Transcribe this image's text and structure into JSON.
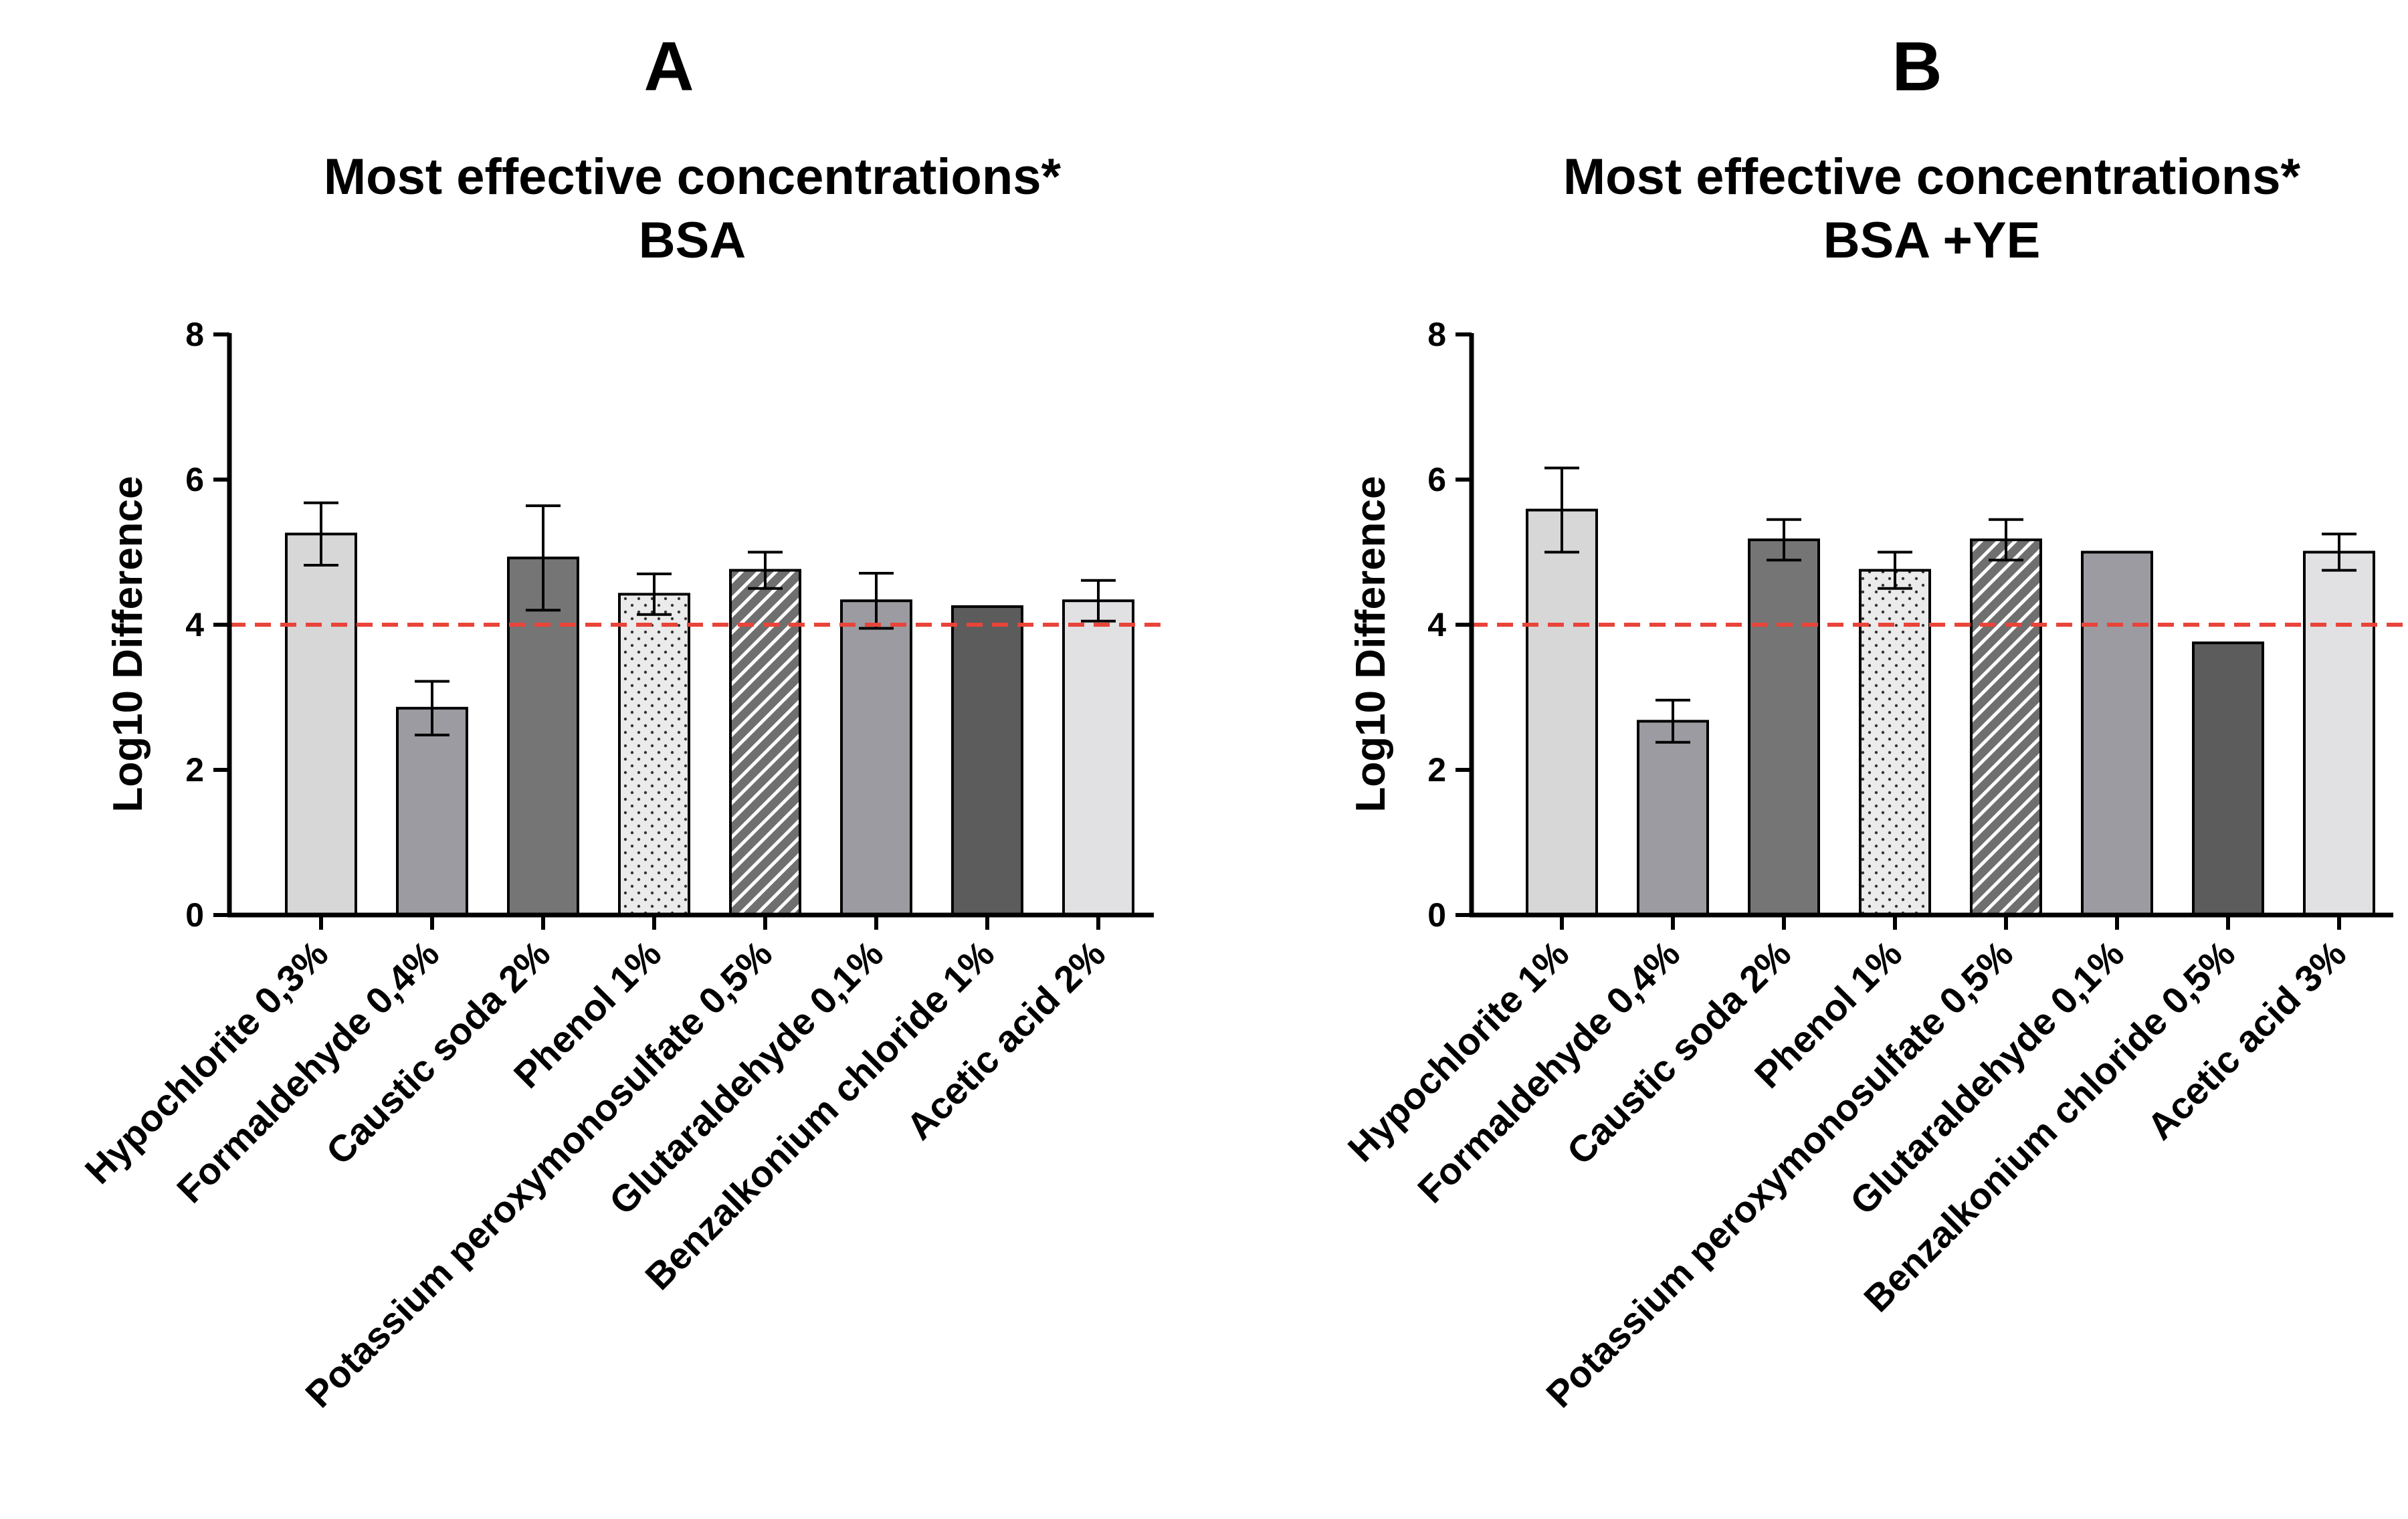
{
  "chart_data": [
    {
      "type": "bar",
      "panel": "A",
      "title": "Most effective concentrations*",
      "subtitle": "BSA",
      "xlabel": "",
      "ylabel": "Log10 Difference",
      "ylim": [
        0,
        8
      ],
      "yticks": [
        "0",
        "2",
        "4",
        "6",
        "8"
      ],
      "threshold": 4,
      "categories": [
        "Hypochlorite 0,3%",
        "Formaldehyde 0,4%",
        "Caustic soda 2%",
        "Phenol 1%",
        "Potassium peroxymonosulfate 0,5%",
        "Glutaraldehyde 0,1%",
        "Benzalkonium chloride 1%",
        "Acetic acid 2%"
      ],
      "values": [
        5.25,
        2.85,
        4.92,
        4.42,
        4.75,
        4.33,
        4.25,
        4.33
      ],
      "errors": [
        0.43,
        0.37,
        0.72,
        0.28,
        0.25,
        0.38,
        0,
        0.28
      ],
      "fills": [
        "#d7d7d7",
        "#9b9ba1",
        "#757575",
        "dots",
        "hatch",
        "#9b9ba1",
        "#5c5c5c",
        "#e1e1e4"
      ]
    },
    {
      "type": "bar",
      "panel": "B",
      "title": "Most effective concentrations*",
      "subtitle": "BSA +YE",
      "xlabel": "",
      "ylabel": "Log10 Difference",
      "ylim": [
        0,
        8
      ],
      "yticks": [
        "0",
        "2",
        "4",
        "6",
        "8"
      ],
      "threshold": 4,
      "categories": [
        "Hypochlorite 1%",
        "Formaldehyde 0,4%",
        "Caustic soda 2%",
        "Phenol 1%",
        "Potassium peroxymonosulfate 0,5%",
        "Glutaraldehyde 0,1%",
        "Benzalkonium chloride 0,5%",
        "Acetic acid 3%"
      ],
      "values": [
        5.58,
        2.67,
        5.17,
        4.75,
        5.17,
        5.0,
        3.75,
        5.0
      ],
      "errors": [
        0.58,
        0.29,
        0.28,
        0.25,
        0.28,
        0,
        0,
        0.25
      ],
      "fills": [
        "#d7d7d7",
        "#9b9ba1",
        "#757575",
        "dots",
        "hatch",
        "#9b9ba1",
        "#5c5c5c",
        "#e1e1e4"
      ]
    }
  ],
  "colors": {
    "threshold_line": "#e8443a",
    "bar_outline": "#000000"
  }
}
